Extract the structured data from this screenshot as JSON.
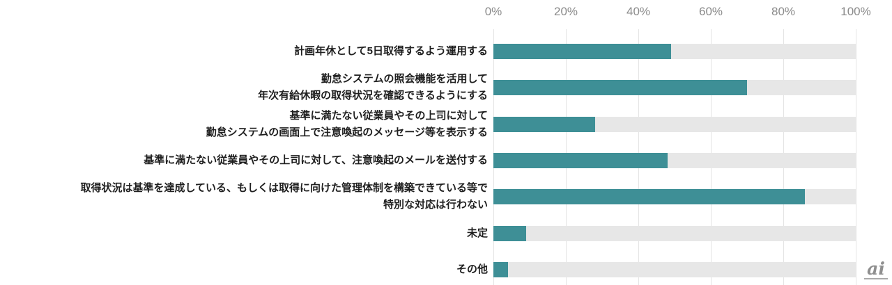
{
  "chart_data": {
    "type": "bar",
    "orientation": "horizontal",
    "title": "",
    "xlabel": "",
    "ylabel": "",
    "categories": [
      "計画年休として5日取得するよう運用する",
      "勤怠システムの照会機能を活用して\n年次有給休暇の取得状況を確認できるようにする",
      "基準に満たない従業員やその上司に対して\n勤怠システムの画面上で注意喚起のメッセージ等を表示する",
      "基準に満たない従業員やその上司に対して、注意喚起のメールを送付する",
      "取得状況は基準を達成している、もしくは取得に向けた管理体制を構築できている等で\n特別な対応は行わない",
      "未定",
      "その他"
    ],
    "values": [
      49,
      70,
      28,
      48,
      86,
      9,
      4
    ],
    "x_ticks": [
      "0%",
      "20%",
      "40%",
      "60%",
      "80%",
      "100%"
    ],
    "xlim": [
      0,
      100
    ],
    "grid": true,
    "legend": false,
    "bar_color": "#3e8f96",
    "track_color": "#e7e7e7",
    "gridline_color": "#e4e4e4"
  },
  "watermark": {
    "text": "ai"
  }
}
